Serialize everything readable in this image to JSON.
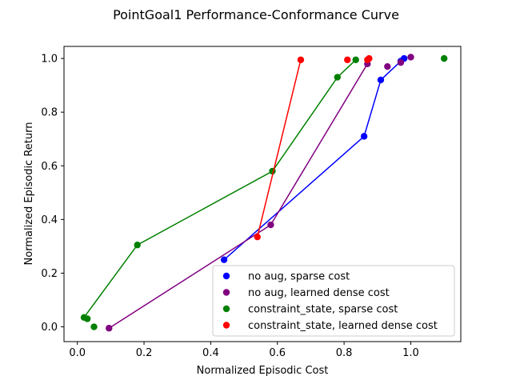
{
  "chart_data": {
    "type": "scatter",
    "title": "PointGoal1 Performance-Conformance Curve",
    "xlabel": "Normalized Episodic Cost",
    "ylabel": "Normalized Episodic Return",
    "xlim": [
      -0.04,
      1.15
    ],
    "ylim": [
      -0.055,
      1.045
    ],
    "xticks": [
      "0.0",
      "0.2",
      "0.4",
      "0.6",
      "0.8",
      "1.0"
    ],
    "xtick_values": [
      0.0,
      0.2,
      0.4,
      0.6,
      0.8,
      1.0
    ],
    "yticks": [
      "0.0",
      "0.2",
      "0.4",
      "0.6",
      "0.8",
      "1.0"
    ],
    "ytick_values": [
      0.0,
      0.2,
      0.4,
      0.6,
      0.8,
      1.0
    ],
    "grid": false,
    "legend_position": "lower-right",
    "series": [
      {
        "name": "no aug, sparse cost",
        "color": "#0000ff",
        "points": [
          [
            0.44,
            0.25
          ],
          [
            0.86,
            0.71
          ],
          [
            0.91,
            0.92
          ],
          [
            0.97,
            0.99
          ],
          [
            0.98,
            1.0
          ]
        ],
        "frontier": [
          [
            0.44,
            0.25
          ],
          [
            0.86,
            0.71
          ],
          [
            0.91,
            0.92
          ],
          [
            0.97,
            0.99
          ],
          [
            0.98,
            1.0
          ]
        ]
      },
      {
        "name": "no aug, learned dense cost",
        "color": "#800080",
        "points": [
          [
            0.095,
            -0.005
          ],
          [
            0.58,
            0.38
          ],
          [
            0.87,
            0.98
          ],
          [
            0.93,
            0.97
          ],
          [
            0.97,
            0.985
          ],
          [
            1.0,
            1.005
          ]
        ],
        "frontier": [
          [
            0.095,
            -0.005
          ],
          [
            0.58,
            0.38
          ],
          [
            0.87,
            0.98
          ]
        ]
      },
      {
        "name": "constraint_state, sparse cost",
        "color": "#008000",
        "points": [
          [
            0.02,
            0.035
          ],
          [
            0.03,
            0.03
          ],
          [
            0.05,
            0.0
          ],
          [
            0.18,
            0.305
          ],
          [
            0.585,
            0.58
          ],
          [
            0.78,
            0.93
          ],
          [
            0.835,
            0.995
          ],
          [
            1.1,
            1.0
          ]
        ],
        "frontier": [
          [
            0.02,
            0.035
          ],
          [
            0.18,
            0.305
          ],
          [
            0.585,
            0.58
          ],
          [
            0.78,
            0.93
          ],
          [
            0.835,
            0.995
          ]
        ]
      },
      {
        "name": "constraint_state, learned dense cost",
        "color": "#ff0000",
        "points": [
          [
            0.54,
            0.335
          ],
          [
            0.67,
            0.995
          ],
          [
            0.81,
            0.995
          ],
          [
            0.87,
            0.995
          ],
          [
            0.875,
            1.0
          ]
        ],
        "frontier": [
          [
            0.54,
            0.335
          ],
          [
            0.67,
            0.995
          ]
        ]
      }
    ]
  }
}
